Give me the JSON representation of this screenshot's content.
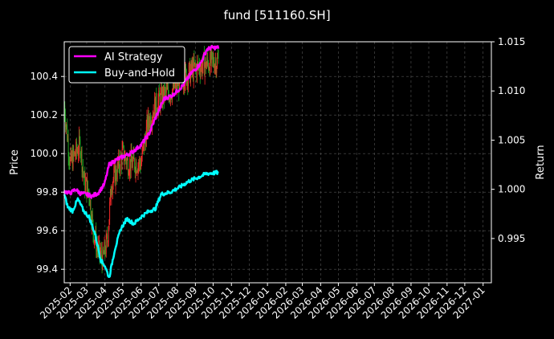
{
  "chart_data": {
    "type": "line",
    "title": "fund [511160.SH]",
    "ylabel_left": "Price",
    "ylabel_right": "Return",
    "ylim_left": [
      99.33,
      100.58
    ],
    "ylim_right": [
      0.9905,
      1.015
    ],
    "yticks_left": [
      "99.4",
      "99.6",
      "99.8",
      "100.0",
      "100.2",
      "100.4"
    ],
    "yticks_right": [
      "0.995",
      "1.000",
      "1.005",
      "1.010",
      "1.015"
    ],
    "x_ticks": [
      "2025-02",
      "2025-03",
      "2025-04",
      "2025-05",
      "2025-06",
      "2025-07",
      "2025-08",
      "2025-09",
      "2025-10",
      "2025-11",
      "2025-12",
      "2026-01",
      "2026-02",
      "2026-03",
      "2026-04",
      "2026-05",
      "2026-06",
      "2026-07",
      "2026-08",
      "2026-09",
      "2026-10",
      "2026-11",
      "2026-12",
      "2027-01"
    ],
    "xlim": [
      "2025-01-22",
      "2027-01-15"
    ],
    "grid": true,
    "legend": {
      "placement": "top-left",
      "entries": [
        "AI Strategy",
        "Buy-and-Hold"
      ]
    },
    "colors": {
      "background": "#000000",
      "ai_strategy": "#ff00ff",
      "buy_hold": "#00ffff",
      "candle_up": "#ff2a2a",
      "candle_down": "#22aa22",
      "grid": "#555555",
      "text": "#ffffff"
    },
    "series": [
      {
        "name": "AI Strategy",
        "axis": "right",
        "points": [
          [
            "2025-01-22",
            0.9998
          ],
          [
            "2025-02-01",
            0.9996
          ],
          [
            "2025-02-10",
            1.0
          ],
          [
            "2025-02-18",
            0.9996
          ],
          [
            "2025-02-28",
            0.9995
          ],
          [
            "2025-03-10",
            0.9993
          ],
          [
            "2025-03-20",
            0.9996
          ],
          [
            "2025-03-31",
            1.0005
          ],
          [
            "2025-04-08",
            1.0025
          ],
          [
            "2025-04-20",
            1.003
          ],
          [
            "2025-05-01",
            1.0033
          ],
          [
            "2025-05-15",
            1.0037
          ],
          [
            "2025-06-01",
            1.0045
          ],
          [
            "2025-06-15",
            1.0057
          ],
          [
            "2025-06-25",
            1.0072
          ],
          [
            "2025-07-10",
            1.0092
          ],
          [
            "2025-07-25",
            1.0096
          ],
          [
            "2025-08-10",
            1.0105
          ],
          [
            "2025-08-25",
            1.0118
          ],
          [
            "2025-09-10",
            1.0128
          ],
          [
            "2025-09-20",
            1.0142
          ],
          [
            "2025-09-28",
            1.0144
          ],
          [
            "2025-10-10",
            1.0144
          ]
        ]
      },
      {
        "name": "Buy-and-Hold",
        "axis": "right",
        "points": [
          [
            "2025-01-22",
            0.9995
          ],
          [
            "2025-01-28",
            0.9982
          ],
          [
            "2025-02-05",
            0.9978
          ],
          [
            "2025-02-14",
            0.999
          ],
          [
            "2025-02-24",
            0.9978
          ],
          [
            "2025-03-05",
            0.9972
          ],
          [
            "2025-03-15",
            0.9955
          ],
          [
            "2025-03-25",
            0.9928
          ],
          [
            "2025-04-01",
            0.9922
          ],
          [
            "2025-04-08",
            0.991
          ],
          [
            "2025-04-18",
            0.994
          ],
          [
            "2025-04-28",
            0.996
          ],
          [
            "2025-05-08",
            0.997
          ],
          [
            "2025-05-20",
            0.9965
          ],
          [
            "2025-06-01",
            0.9972
          ],
          [
            "2025-06-15",
            0.9978
          ],
          [
            "2025-06-25",
            0.998
          ],
          [
            "2025-07-05",
            0.9995
          ],
          [
            "2025-07-20",
            0.9997
          ],
          [
            "2025-08-05",
            1.0002
          ],
          [
            "2025-08-20",
            1.0008
          ],
          [
            "2025-09-05",
            1.0012
          ],
          [
            "2025-09-20",
            1.0016
          ],
          [
            "2025-10-10",
            1.0017
          ]
        ]
      },
      {
        "name": "price",
        "axis": "left",
        "points": [
          [
            "2025-01-22",
            100.25
          ],
          [
            "2025-02-01",
            99.95
          ],
          [
            "2025-02-10",
            100.0
          ],
          [
            "2025-02-18",
            100.05
          ],
          [
            "2025-02-25",
            99.85
          ],
          [
            "2025-03-05",
            99.8
          ],
          [
            "2025-03-12",
            99.6
          ],
          [
            "2025-03-20",
            99.5
          ],
          [
            "2025-03-28",
            99.45
          ],
          [
            "2025-04-05",
            99.55
          ],
          [
            "2025-04-12",
            99.85
          ],
          [
            "2025-04-20",
            99.9
          ],
          [
            "2025-05-01",
            100.0
          ],
          [
            "2025-05-10",
            99.95
          ],
          [
            "2025-05-20",
            99.95
          ],
          [
            "2025-06-01",
            99.95
          ],
          [
            "2025-06-12",
            100.15
          ],
          [
            "2025-06-25",
            100.25
          ],
          [
            "2025-07-08",
            100.3
          ],
          [
            "2025-07-20",
            100.32
          ],
          [
            "2025-08-01",
            100.36
          ],
          [
            "2025-08-15",
            100.4
          ],
          [
            "2025-08-30",
            100.44
          ],
          [
            "2025-09-12",
            100.46
          ],
          [
            "2025-09-25",
            100.47
          ],
          [
            "2025-10-10",
            100.48
          ]
        ]
      }
    ]
  }
}
